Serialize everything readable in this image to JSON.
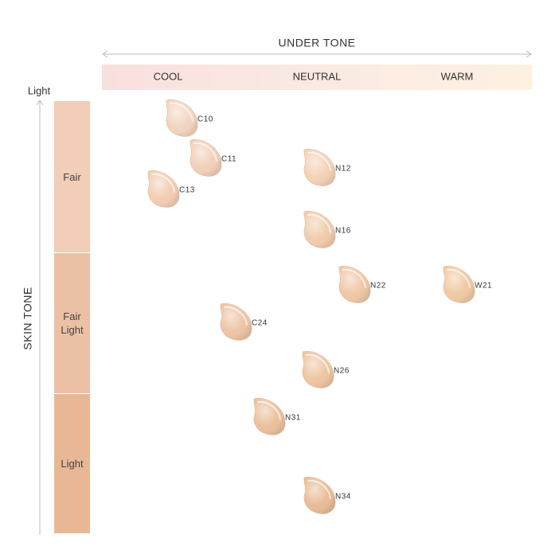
{
  "header": {
    "undertone_title": "UNDER TONE",
    "skintone_title": "SKIN TONE",
    "axis_top_label": "Light"
  },
  "undertones": [
    "COOL",
    "NEUTRAL",
    "WARM"
  ],
  "skin_tones": [
    {
      "label": "Fair",
      "color": "#f2cdb7"
    },
    {
      "label": "Fair Light",
      "color": "#ecc0a4"
    },
    {
      "label": "Light",
      "color": "#e8b896"
    }
  ],
  "swatches": [
    {
      "label": "C10",
      "color": "#f2d4c0"
    },
    {
      "label": "C11",
      "color": "#f1d0b8"
    },
    {
      "label": "C13",
      "color": "#f2cdb3"
    },
    {
      "label": "N12",
      "color": "#f4d2b6"
    },
    {
      "label": "N16",
      "color": "#f1ccad"
    },
    {
      "label": "N22",
      "color": "#efc8a6"
    },
    {
      "label": "W21",
      "color": "#f0c9a2"
    },
    {
      "label": "C24",
      "color": "#edc4a5"
    },
    {
      "label": "N26",
      "color": "#eec6a2"
    },
    {
      "label": "N31",
      "color": "#ebc09c"
    },
    {
      "label": "N34",
      "color": "#e9bc96"
    }
  ]
}
